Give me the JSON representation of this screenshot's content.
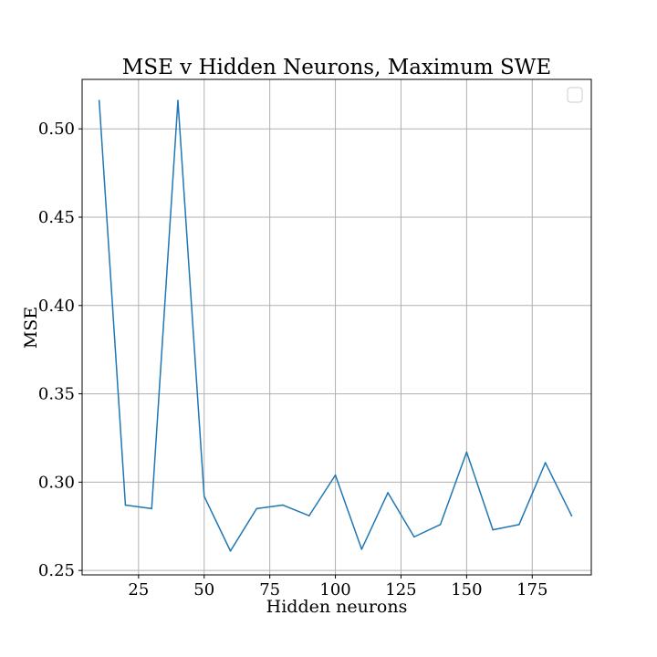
{
  "chart_data": {
    "type": "line",
    "title": "MSE v Hidden Neurons, Maximum SWE",
    "xlabel": "Hidden neurons",
    "ylabel": "MSE",
    "xlim": [
      3.5,
      197.5
    ],
    "ylim": [
      0.2475,
      0.528
    ],
    "x_ticks": [
      25,
      50,
      75,
      100,
      125,
      150,
      175
    ],
    "y_ticks": [
      0.25,
      0.3,
      0.35,
      0.4,
      0.45,
      0.5
    ],
    "y_tick_labels": [
      "0.25",
      "0.30",
      "0.35",
      "0.40",
      "0.45",
      "0.50"
    ],
    "grid": true,
    "legend": {
      "placement": "upper right",
      "entries": []
    },
    "series": [
      {
        "color": "#1f77b4",
        "x": [
          10,
          20,
          30,
          40,
          50,
          60,
          70,
          80,
          90,
          100,
          110,
          120,
          130,
          140,
          150,
          160,
          170,
          180,
          190
        ],
        "y": [
          0.516,
          0.287,
          0.285,
          0.516,
          0.292,
          0.261,
          0.285,
          0.287,
          0.281,
          0.304,
          0.262,
          0.294,
          0.269,
          0.276,
          0.317,
          0.273,
          0.276,
          0.311,
          0.281
        ]
      }
    ]
  }
}
